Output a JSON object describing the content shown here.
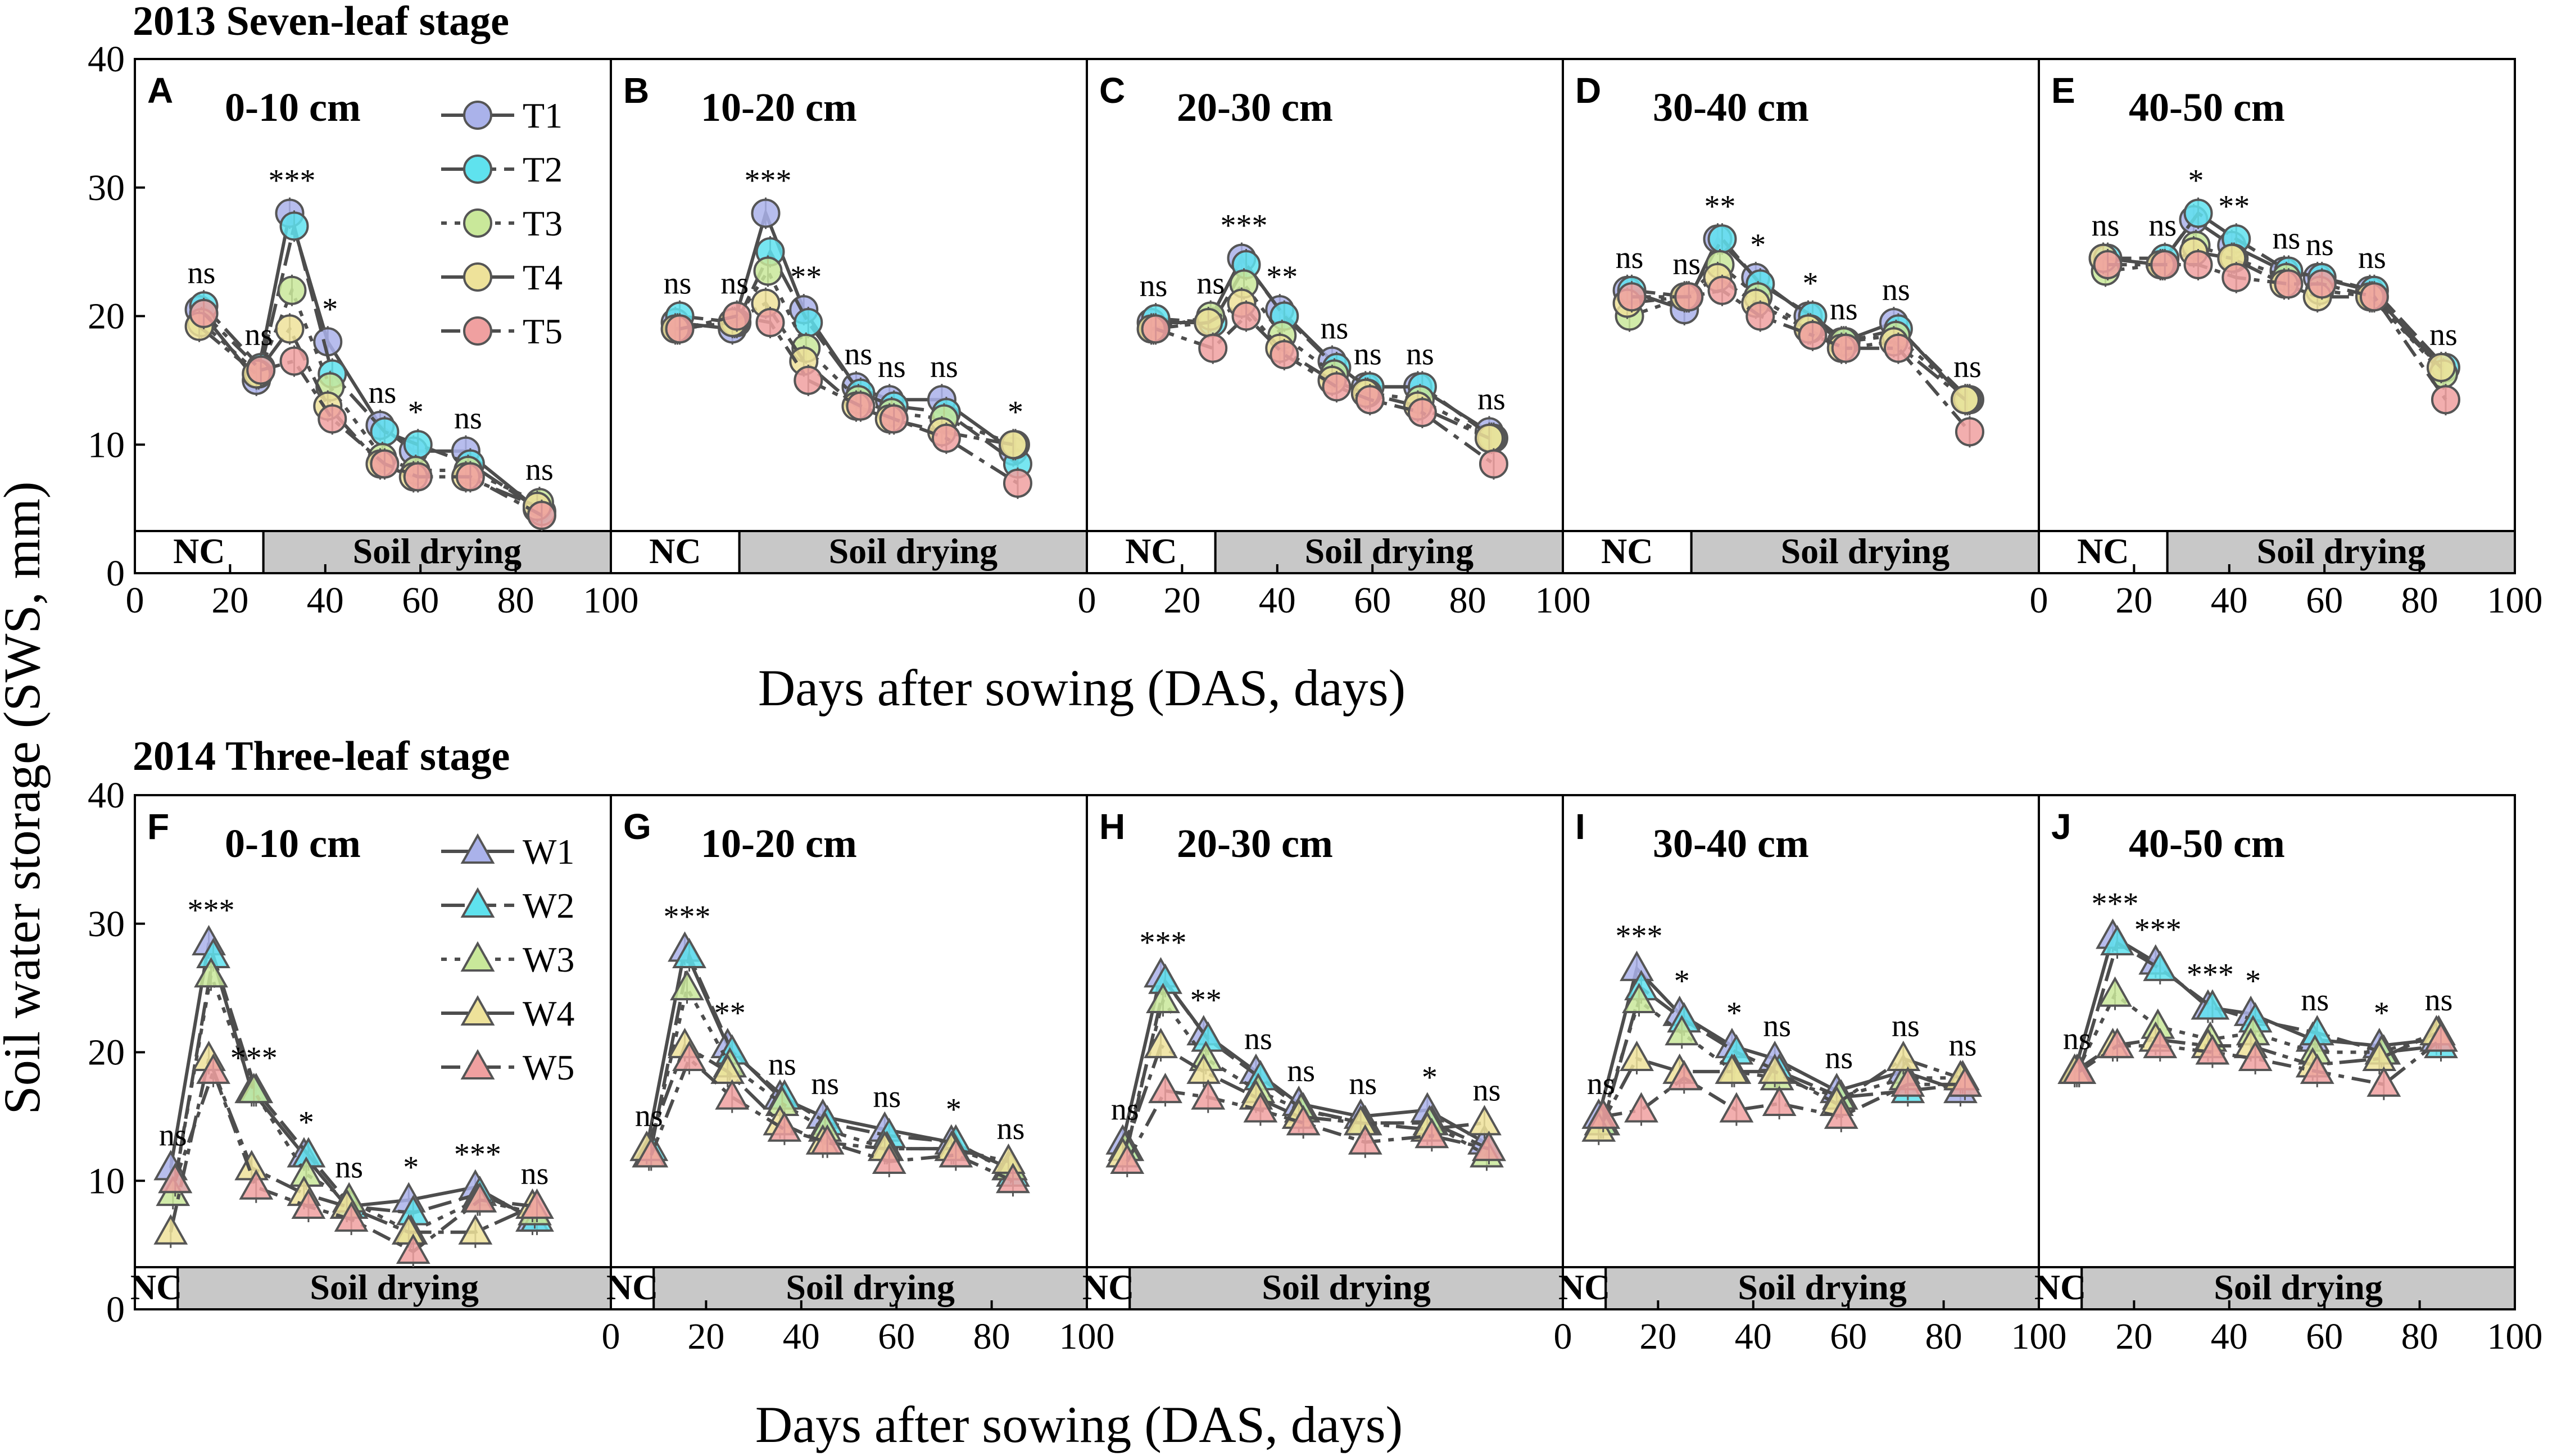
{
  "figure": {
    "y_axis_label": "Soil water storage (SWS, mm)",
    "bands": {
      "nc": "NC",
      "drying": "Soil drying"
    }
  },
  "chart_data": [
    {
      "type": "line",
      "row_title": "2013 Seven-leaf stage",
      "xlabel": "Days after sowing (DAS, days)",
      "ylabel": "Soil water storage (SWS, mm)",
      "xlim": [
        0,
        100
      ],
      "ylim": [
        0,
        40
      ],
      "x_ticks": [
        0,
        20,
        40,
        60,
        80,
        100
      ],
      "y_ticks": [
        0,
        10,
        20,
        30,
        40
      ],
      "marker": "circle",
      "nc_end": 27,
      "legend": [
        "T1",
        "T2",
        "T3",
        "T4",
        "T5"
      ],
      "series_colors": [
        "#aab2ea",
        "#5fe2ee",
        "#c9e89a",
        "#eee29a",
        "#f0a0a0"
      ],
      "x": [
        14,
        26,
        33,
        41,
        52,
        59,
        70,
        85
      ],
      "panels": [
        {
          "label": "A",
          "depth": "0-10 cm",
          "series": [
            {
              "name": "T1",
              "values": [
                20.5,
                15.0,
                28.0,
                18.0,
                11.5,
                9.5,
                9.5,
                5.0
              ]
            },
            {
              "name": "T2",
              "values": [
                20.8,
                16.0,
                27.0,
                15.5,
                11.0,
                10.0,
                8.5,
                4.8
              ]
            },
            {
              "name": "T3",
              "values": [
                19.5,
                15.5,
                22.0,
                14.5,
                9.0,
                8.0,
                8.0,
                5.5
              ]
            },
            {
              "name": "T4",
              "values": [
                19.2,
                15.5,
                19.0,
                13.0,
                8.5,
                7.5,
                7.5,
                5.2
              ]
            },
            {
              "name": "T5",
              "values": [
                20.2,
                15.8,
                16.5,
                12.0,
                8.5,
                7.5,
                7.5,
                4.5
              ]
            }
          ],
          "annotations": [
            "ns",
            "ns",
            "***",
            "*",
            "ns",
            "*",
            "ns",
            "ns"
          ]
        },
        {
          "label": "B",
          "depth": "10-20 cm",
          "series": [
            {
              "name": "T1",
              "values": [
                19.5,
                19.0,
                28.0,
                20.5,
                14.5,
                13.5,
                13.5,
                9.5
              ]
            },
            {
              "name": "T2",
              "values": [
                20.0,
                19.5,
                25.0,
                19.5,
                14.0,
                13.0,
                12.5,
                8.5
              ]
            },
            {
              "name": "T3",
              "values": [
                19.0,
                19.5,
                23.5,
                17.5,
                13.5,
                12.5,
                12.0,
                10.0
              ]
            },
            {
              "name": "T4",
              "values": [
                19.0,
                19.5,
                21.0,
                16.5,
                13.0,
                12.0,
                11.0,
                10.0
              ]
            },
            {
              "name": "T5",
              "values": [
                19.0,
                20.0,
                19.5,
                15.0,
                13.0,
                12.0,
                10.5,
                7.0
              ]
            }
          ],
          "annotations": [
            "ns",
            "ns",
            "***",
            "**",
            "ns",
            "ns",
            "ns",
            "*"
          ]
        },
        {
          "label": "C",
          "depth": "20-30 cm",
          "series": [
            {
              "name": "T1",
              "values": [
                19.5,
                19.5,
                24.5,
                20.5,
                16.5,
                14.5,
                14.5,
                11.0
              ]
            },
            {
              "name": "T2",
              "values": [
                19.8,
                19.5,
                24.0,
                20.0,
                16.0,
                14.5,
                14.5,
                10.5
              ]
            },
            {
              "name": "T3",
              "values": [
                19.0,
                20.0,
                22.5,
                18.5,
                15.5,
                14.0,
                13.5,
                10.5
              ]
            },
            {
              "name": "T4",
              "values": [
                19.0,
                19.5,
                21.0,
                17.5,
                15.0,
                14.0,
                13.0,
                10.5
              ]
            },
            {
              "name": "T5",
              "values": [
                19.0,
                17.5,
                20.0,
                17.0,
                14.5,
                13.5,
                12.5,
                8.5
              ]
            }
          ],
          "annotations": [
            "ns",
            "ns",
            "***",
            "**",
            "ns",
            "ns",
            "ns",
            "ns"
          ]
        },
        {
          "label": "D",
          "depth": "30-40 cm",
          "series": [
            {
              "name": "T1",
              "values": [
                22.0,
                20.5,
                26.0,
                23.0,
                20.0,
                18.0,
                19.5,
                13.5
              ]
            },
            {
              "name": "T2",
              "values": [
                22.0,
                21.5,
                26.0,
                22.5,
                20.0,
                18.0,
                19.0,
                13.5
              ]
            },
            {
              "name": "T3",
              "values": [
                20.0,
                21.5,
                24.0,
                21.5,
                19.0,
                18.0,
                18.5,
                13.5
              ]
            },
            {
              "name": "T4",
              "values": [
                21.0,
                21.5,
                23.0,
                21.0,
                19.0,
                17.5,
                18.0,
                13.5
              ]
            },
            {
              "name": "T5",
              "values": [
                21.5,
                21.5,
                22.0,
                20.0,
                18.5,
                17.5,
                17.5,
                11.0
              ]
            }
          ],
          "annotations": [
            "ns",
            "ns",
            "**",
            "*",
            "*",
            "ns",
            "ns",
            "ns"
          ]
        },
        {
          "label": "E",
          "depth": "40-50 cm",
          "series": [
            {
              "name": "T1",
              "values": [
                24.5,
                24.0,
                27.5,
                25.5,
                23.5,
                23.0,
                22.0,
                16.0
              ]
            },
            {
              "name": "T2",
              "values": [
                24.5,
                24.5,
                28.0,
                26.0,
                23.5,
                23.0,
                22.0,
                16.0
              ]
            },
            {
              "name": "T3",
              "values": [
                23.5,
                24.0,
                25.5,
                24.5,
                23.0,
                22.0,
                21.5,
                15.5
              ]
            },
            {
              "name": "T4",
              "values": [
                24.5,
                24.0,
                25.0,
                24.5,
                22.5,
                21.5,
                21.5,
                16.0
              ]
            },
            {
              "name": "T5",
              "values": [
                24.0,
                24.0,
                24.0,
                23.0,
                22.5,
                22.5,
                21.5,
                13.5
              ]
            }
          ],
          "annotations": [
            "ns",
            "ns",
            "*",
            "**",
            "ns",
            "ns",
            "ns",
            "ns"
          ]
        }
      ]
    },
    {
      "type": "line",
      "row_title": "2014 Three-leaf stage",
      "xlabel": "Days after sowing (DAS, days)",
      "ylabel": "Soil water storage (SWS, mm)",
      "xlim": [
        0,
        100
      ],
      "ylim": [
        0,
        40
      ],
      "x_ticks": [
        0,
        20,
        40,
        60,
        80,
        100
      ],
      "y_ticks": [
        0,
        10,
        20,
        30,
        40
      ],
      "marker": "triangle",
      "nc_end": 9,
      "legend": [
        "W1",
        "W2",
        "W3",
        "W4",
        "W5"
      ],
      "series_colors": [
        "#aab2ea",
        "#5fe2ee",
        "#c9e89a",
        "#eee29a",
        "#f0a0a0"
      ],
      "x": [
        8,
        16,
        25,
        36,
        45,
        58,
        72,
        84
      ],
      "panels": [
        {
          "label": "F",
          "depth": "0-10 cm",
          "series": [
            {
              "name": "W1",
              "values": [
                11.0,
                28.5,
                17.0,
                12.0,
                8.0,
                8.5,
                9.5,
                7.0
              ]
            },
            {
              "name": "W2",
              "values": [
                10.0,
                27.5,
                17.0,
                12.0,
                8.0,
                7.5,
                9.0,
                7.0
              ]
            },
            {
              "name": "W3",
              "values": [
                9.0,
                26.0,
                17.0,
                10.5,
                8.5,
                6.0,
                8.5,
                7.5
              ]
            },
            {
              "name": "W4",
              "values": [
                6.0,
                19.5,
                11.0,
                9.0,
                8.0,
                6.0,
                6.0,
                8.0
              ]
            },
            {
              "name": "W5",
              "values": [
                10.0,
                18.5,
                9.5,
                8.0,
                7.0,
                4.5,
                8.5,
                8.0
              ]
            }
          ],
          "annotations": [
            "ns",
            "***",
            "***",
            "*",
            "ns",
            "*",
            "***",
            "ns"
          ]
        },
        {
          "label": "G",
          "depth": "10-20 cm",
          "series": [
            {
              "name": "W1",
              "values": [
                12.5,
                28.0,
                20.5,
                16.5,
                15.0,
                14.0,
                13.0,
                11.0
              ]
            },
            {
              "name": "W2",
              "values": [
                12.5,
                27.5,
                20.0,
                16.5,
                14.5,
                13.5,
                13.0,
                10.5
              ]
            },
            {
              "name": "W3",
              "values": [
                12.0,
                25.0,
                19.0,
                16.0,
                14.0,
                12.5,
                12.5,
                11.0
              ]
            },
            {
              "name": "W4",
              "values": [
                12.5,
                20.5,
                18.5,
                14.5,
                13.0,
                12.5,
                12.5,
                11.5
              ]
            },
            {
              "name": "W5",
              "values": [
                12.0,
                19.5,
                16.5,
                14.0,
                13.0,
                11.5,
                12.0,
                10.0
              ]
            }
          ],
          "annotations": [
            "ns",
            "***",
            "**",
            "ns",
            "ns",
            "ns",
            "*",
            "ns"
          ]
        },
        {
          "label": "H",
          "depth": "20-30 cm",
          "series": [
            {
              "name": "W1",
              "values": [
                13.0,
                26.0,
                21.5,
                18.5,
                16.0,
                15.0,
                15.5,
                13.0
              ]
            },
            {
              "name": "W2",
              "values": [
                12.5,
                25.5,
                21.0,
                18.0,
                15.5,
                14.5,
                14.5,
                12.5
              ]
            },
            {
              "name": "W3",
              "values": [
                12.5,
                24.0,
                19.5,
                17.0,
                15.5,
                14.5,
                14.5,
                12.0
              ]
            },
            {
              "name": "W4",
              "values": [
                12.0,
                20.5,
                18.5,
                16.5,
                15.0,
                14.5,
                14.0,
                14.5
              ]
            },
            {
              "name": "W5",
              "values": [
                11.5,
                17.0,
                16.5,
                15.5,
                14.5,
                13.0,
                13.5,
                12.5
              ]
            }
          ],
          "annotations": [
            "ns",
            "***",
            "**",
            "ns",
            "ns",
            "ns",
            "*",
            "ns"
          ]
        },
        {
          "label": "I",
          "depth": "30-40 cm",
          "series": [
            {
              "name": "W1",
              "values": [
                15.0,
                26.5,
                23.0,
                20.5,
                19.5,
                17.0,
                18.5,
                17.0
              ]
            },
            {
              "name": "W2",
              "values": [
                14.5,
                25.0,
                22.5,
                20.0,
                18.5,
                16.5,
                17.0,
                17.5
              ]
            },
            {
              "name": "W3",
              "values": [
                14.5,
                24.0,
                21.5,
                18.5,
                18.0,
                16.5,
                18.0,
                18.0
              ]
            },
            {
              "name": "W4",
              "values": [
                14.0,
                19.5,
                18.5,
                18.5,
                18.5,
                16.0,
                19.5,
                18.0
              ]
            },
            {
              "name": "W5",
              "values": [
                15.0,
                15.5,
                18.0,
                15.5,
                16.0,
                15.0,
                17.5,
                17.5
              ]
            }
          ],
          "annotations": [
            "ns",
            "***",
            "*",
            "*",
            "ns",
            "ns",
            "ns",
            "ns"
          ]
        },
        {
          "label": "J",
          "depth": "40-50 cm",
          "series": [
            {
              "name": "W1",
              "values": [
                18.5,
                29.0,
                27.0,
                23.5,
                23.0,
                21.0,
                20.5,
                21.0
              ]
            },
            {
              "name": "W2",
              "values": [
                18.5,
                28.5,
                26.5,
                23.5,
                22.5,
                21.5,
                20.0,
                20.5
              ]
            },
            {
              "name": "W3",
              "values": [
                18.5,
                24.5,
                22.0,
                21.0,
                21.5,
                20.0,
                20.0,
                21.5
              ]
            },
            {
              "name": "W4",
              "values": [
                18.5,
                20.5,
                21.0,
                20.5,
                20.5,
                19.0,
                19.5,
                21.5
              ]
            },
            {
              "name": "W5",
              "values": [
                18.5,
                20.5,
                20.5,
                20.0,
                19.5,
                18.5,
                17.5,
                21.0
              ]
            }
          ],
          "annotations": [
            "ns",
            "***",
            "***",
            "***",
            "*",
            "ns",
            "*",
            "ns"
          ]
        }
      ]
    }
  ]
}
